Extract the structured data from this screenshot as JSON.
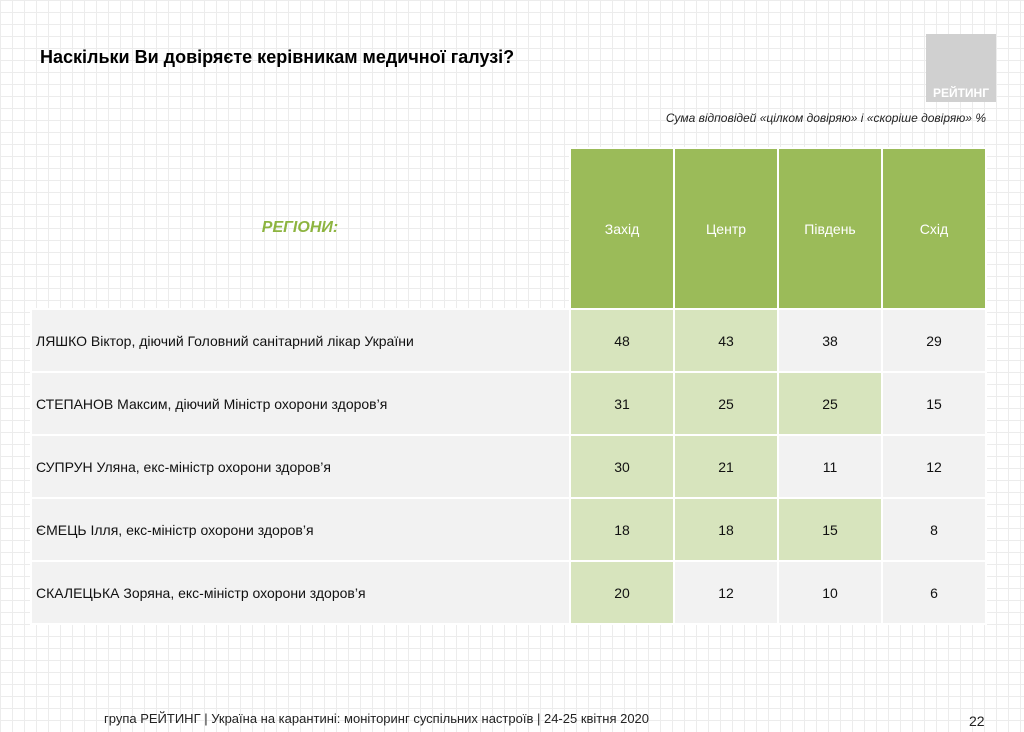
{
  "title": "Наскільки Ви довіряєте керівникам медичної галузі?",
  "logo": "РЕЙТИНГ",
  "subtitle": "Сума відповідей «цілком довіряю» і «скоріше довіряю» %",
  "table": {
    "header_label": "РЕГІОНИ:",
    "columns": [
      "Захід",
      "Центр",
      "Південь",
      "Схід"
    ],
    "highlight_color": "#d7e4bd",
    "header_color": "#9bbb59",
    "rows": [
      {
        "name": "ЛЯШКО Віктор, діючий Головний санітарний лікар України",
        "values": [
          "48",
          "43",
          "38",
          "29"
        ],
        "highlight": [
          true,
          true,
          false,
          false
        ]
      },
      {
        "name": "СТЕПАНОВ Максим, діючий Міністр охорони здоров’я",
        "values": [
          "31",
          "25",
          "25",
          "15"
        ],
        "highlight": [
          true,
          true,
          true,
          false
        ]
      },
      {
        "name": "СУПРУН Уляна, екс-міністр охорони здоров’я",
        "values": [
          "30",
          "21",
          "11",
          "12"
        ],
        "highlight": [
          true,
          true,
          false,
          false
        ]
      },
      {
        "name": "ЄМЕЦЬ Ілля, екс-міністр охорони здоров’я",
        "values": [
          "18",
          "18",
          "15",
          "8"
        ],
        "highlight": [
          true,
          true,
          true,
          false
        ]
      },
      {
        "name": "СКАЛЕЦЬКА Зоряна, екс-міністр охорони здоров’я",
        "values": [
          "20",
          "12",
          "10",
          "6"
        ],
        "highlight": [
          true,
          false,
          false,
          false
        ]
      }
    ]
  },
  "footer": "група РЕЙТИНГ | Україна на карантині: моніторинг суспільних настроїв  | 24-25 квітня  2020",
  "page_number": "22"
}
